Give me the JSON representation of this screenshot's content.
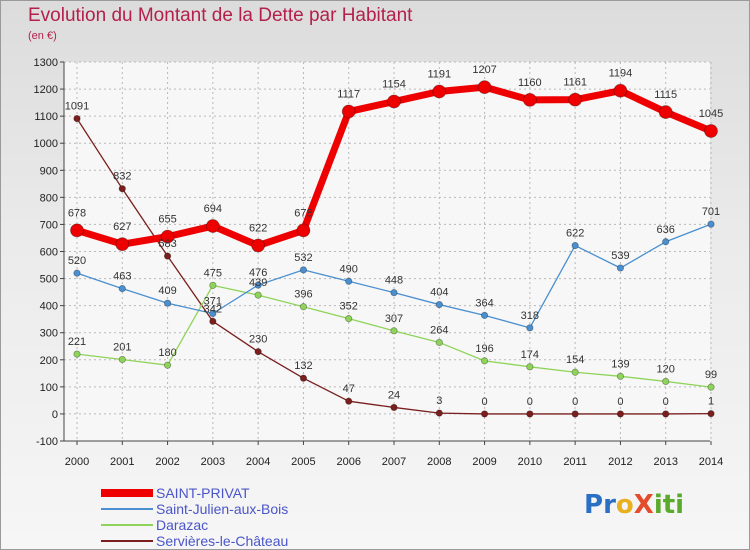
{
  "title": "Evolution du Montant de la Dette par Habitant",
  "subtitle": "(en €)",
  "logo": {
    "text": "ProXiti",
    "letters": [
      "P",
      "r",
      "o",
      "X",
      "i",
      "t",
      "i"
    ]
  },
  "chart_data": {
    "type": "line",
    "title": "Evolution du Montant de la Dette par Habitant",
    "ylabel": "(en €)",
    "xlabel": "",
    "x": [
      "2000",
      "2001",
      "2002",
      "2003",
      "2004",
      "2005",
      "2006",
      "2007",
      "2008",
      "2009",
      "2010",
      "2011",
      "2012",
      "2013",
      "2014"
    ],
    "ylim": [
      -100,
      1300
    ],
    "yticks": [
      -100,
      0,
      100,
      200,
      300,
      400,
      500,
      600,
      700,
      800,
      900,
      1000,
      1100,
      1200,
      1300
    ],
    "grid": true,
    "legend_position": "bottom-left",
    "series": [
      {
        "name": "SAINT-PRIVAT",
        "color": "#ee0000",
        "values": [
          678,
          627,
          655,
          694,
          622,
          678,
          1117,
          1154,
          1191,
          1207,
          1160,
          1161,
          1194,
          1115,
          1045
        ]
      },
      {
        "name": "Saint-Julien-aux-Bois",
        "color": "#4a8fd0",
        "values": [
          520,
          463,
          409,
          371,
          476,
          532,
          490,
          448,
          404,
          364,
          318,
          622,
          539,
          636,
          701
        ]
      },
      {
        "name": "Darazac",
        "color": "#8fd45a",
        "values": [
          221,
          201,
          180,
          475,
          439,
          396,
          352,
          307,
          264,
          196,
          174,
          154,
          139,
          120,
          99
        ]
      },
      {
        "name": "Servières-le-Château",
        "color": "#7a1e1e",
        "values": [
          1091,
          832,
          583,
          342,
          230,
          132,
          47,
          24,
          3,
          0,
          0,
          0,
          0,
          0,
          1
        ]
      }
    ]
  }
}
